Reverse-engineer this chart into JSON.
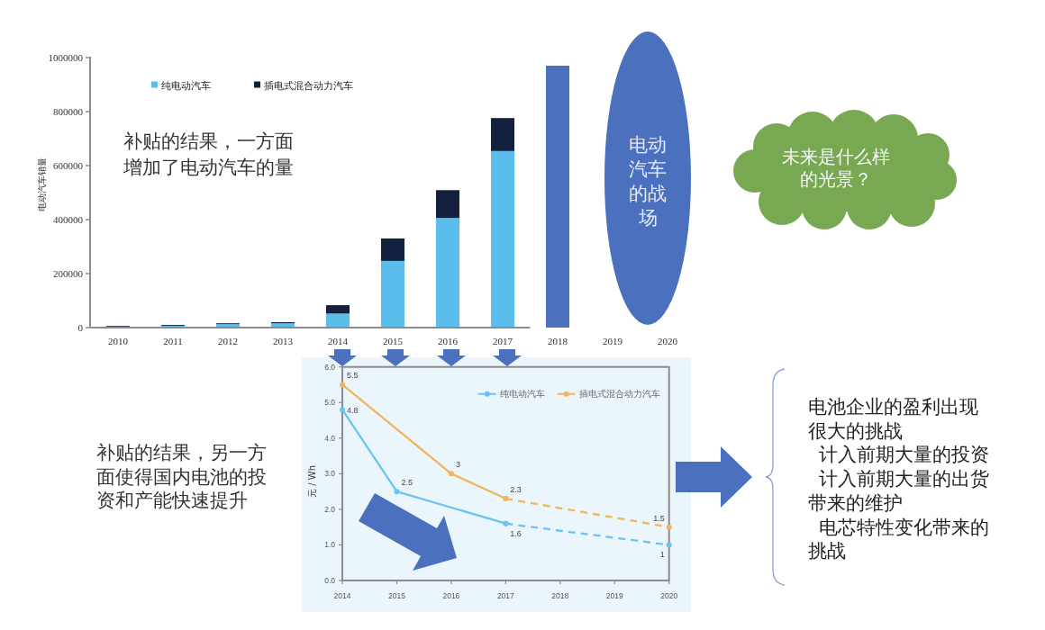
{
  "chart_data": [
    {
      "type": "bar",
      "stacked": true,
      "ylabel": "电动汽车销量",
      "categories": [
        "2010",
        "2011",
        "2012",
        "2013",
        "2014",
        "2015",
        "2016",
        "2017",
        "2018",
        "2019",
        "2020"
      ],
      "series": [
        {
          "name": "纯电动汽车",
          "color": "#5bbdec",
          "values": [
            1000,
            7000,
            13000,
            16000,
            52000,
            247000,
            406000,
            654000,
            null,
            null,
            null
          ]
        },
        {
          "name": "插电式混合动力汽车",
          "color": "#13213f",
          "values": [
            5000,
            3000,
            3000,
            4000,
            31000,
            83000,
            103000,
            122000,
            null,
            null,
            null
          ]
        },
        {
          "color": "#4a70be",
          "values": [
            null,
            null,
            null,
            null,
            null,
            null,
            null,
            null,
            970000,
            null,
            null
          ]
        }
      ],
      "ylim": [
        0,
        1000000
      ],
      "yticks": [
        0,
        200000,
        400000,
        600000,
        800000,
        1000000
      ],
      "legend": "top",
      "annotations": [
        "补贴的结果，一方面增加了电动汽车的量",
        "电动汽车的战场",
        "未来是什么样的光景？"
      ]
    },
    {
      "type": "line",
      "ylabel": "元 / Wh",
      "xlim": [
        2014,
        2020
      ],
      "xticks": [
        2014,
        2015,
        2016,
        2017,
        2018,
        2019,
        2020
      ],
      "ylim": [
        0,
        6
      ],
      "yticks": [
        {
          "value": 0,
          "label": "0.0"
        },
        {
          "value": 1,
          "label": "1.0"
        },
        {
          "value": 2,
          "label": "2.0"
        },
        {
          "value": 3,
          "label": "3.0"
        },
        {
          "value": 4,
          "label": "4.0"
        },
        {
          "value": 5,
          "label": "5.0"
        },
        {
          "value": 6,
          "label": "6.0"
        }
      ],
      "marker": "circle",
      "legend": "top right",
      "series": [
        {
          "name": "纯电动汽车",
          "color": "#6cc3ef",
          "x": [
            2014,
            2015,
            2017
          ],
          "values": [
            4.8,
            2.5,
            1.6
          ],
          "value_labels": [
            "4.8",
            "2.5",
            "1.6"
          ]
        },
        {
          "color": "#6cc3ef",
          "x": [
            2017,
            2020
          ],
          "values": [
            1.6,
            1
          ],
          "line_style": "dashed",
          "value_labels": [
            null,
            "1"
          ]
        },
        {
          "name": "插电式混合动力汽车",
          "color": "#f2b45c",
          "x": [
            2014,
            2016,
            2017
          ],
          "values": [
            5.5,
            3,
            2.3
          ],
          "value_labels": [
            "5.5",
            "3",
            "2.3"
          ]
        },
        {
          "color": "#f2b45c",
          "x": [
            2017,
            2020
          ],
          "values": [
            2.3,
            1.5
          ],
          "line_style": "dashed",
          "value_labels": [
            null,
            "1.5"
          ]
        }
      ],
      "annotations": [
        "补贴的结果，另一方面使得国内电池的投资和产能快速提升",
        "电池企业的盈利出现很大的挑战",
        "计入前期大量的投资",
        "计入前期大量的出货带来的维护",
        "电芯特性变化带来的挑战"
      ]
    }
  ]
}
